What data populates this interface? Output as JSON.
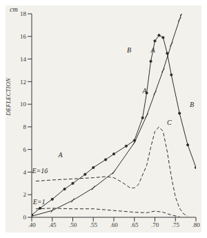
{
  "chart_data": {
    "type": "line",
    "ylabel": "DEFLECTION",
    "y_unit": "cm",
    "xlim": [
      0.4,
      0.8
    ],
    "xticks": [
      {
        "value": 0.4,
        "label": ".40"
      },
      {
        "value": 0.45,
        "label": ".45"
      },
      {
        "value": 0.5,
        "label": ".50"
      },
      {
        "value": 0.55,
        "label": ".55"
      },
      {
        "value": 0.6,
        "label": ".60"
      },
      {
        "value": 0.65,
        "label": ".65"
      },
      {
        "value": 0.7,
        "label": ".70"
      },
      {
        "value": 0.75,
        "label": ".75"
      },
      {
        "value": 0.8,
        "label": ".80"
      }
    ],
    "ylim": [
      0,
      18
    ],
    "yticks": [
      0,
      2,
      4,
      6,
      8,
      10,
      12,
      14,
      16,
      18
    ],
    "grid": false,
    "series": [
      {
        "name": "A",
        "color": "#2b2b2b",
        "marker": "tick",
        "line_style": "solid",
        "x": [
          0.4,
          0.45,
          0.5,
          0.55,
          0.6,
          0.65,
          0.68,
          0.7,
          0.72,
          0.74,
          0.76,
          0.765
        ],
        "values": [
          0.1,
          0.6,
          1.5,
          2.6,
          4.0,
          6.6,
          9.0,
          11.0,
          13.0,
          15.3,
          17.5,
          18.0
        ],
        "label_points": [
          [
            0.47,
            5.5
          ],
          [
            0.675,
            11.2
          ],
          [
            0.695,
            14.8
          ]
        ]
      },
      {
        "name": "B",
        "color": "#2b2b2b",
        "marker": "dot",
        "line_style": "solid",
        "x": [
          0.4,
          0.42,
          0.45,
          0.48,
          0.5,
          0.53,
          0.55,
          0.58,
          0.6,
          0.63,
          0.65,
          0.67,
          0.68,
          0.69,
          0.7,
          0.71,
          0.72,
          0.73,
          0.74,
          0.76,
          0.78,
          0.8
        ],
        "values": [
          0.2,
          0.8,
          1.6,
          2.5,
          3.0,
          3.8,
          4.4,
          5.1,
          5.6,
          6.3,
          6.8,
          8.8,
          11.0,
          13.8,
          15.6,
          16.1,
          15.9,
          14.5,
          12.6,
          9.2,
          6.4,
          4.4
        ],
        "label_points": [
          [
            0.637,
            14.8
          ],
          [
            0.79,
            10.0
          ]
        ]
      },
      {
        "name": "C",
        "color": "#2b2b2b",
        "marker": "none",
        "line_style": "dashed",
        "x": [
          0.41,
          0.45,
          0.5,
          0.55,
          0.58,
          0.6,
          0.62,
          0.64,
          0.65,
          0.66,
          0.68,
          0.69,
          0.7,
          0.71,
          0.72,
          0.73,
          0.74,
          0.75,
          0.76,
          0.77,
          0.78
        ],
        "values": [
          3.2,
          3.3,
          3.4,
          3.5,
          3.6,
          3.5,
          3.1,
          2.6,
          2.6,
          2.9,
          4.6,
          6.2,
          7.6,
          8.0,
          7.6,
          5.8,
          3.6,
          1.8,
          0.8,
          0.3,
          0.1
        ],
        "label_points": [
          [
            0.735,
            8.4
          ]
        ]
      },
      {
        "name": "E=1",
        "color": "#2b2b2b",
        "marker": "none",
        "line_style": "dashed",
        "x": [
          0.41,
          0.45,
          0.5,
          0.55,
          0.6,
          0.65,
          0.68,
          0.7,
          0.72,
          0.74,
          0.76
        ],
        "values": [
          0.75,
          0.8,
          0.75,
          0.75,
          0.6,
          0.45,
          0.4,
          0.55,
          0.45,
          0.2,
          0.05
        ],
        "label_points": [
          [
            0.418,
            1.4
          ]
        ]
      }
    ],
    "annotations": [
      {
        "text": "E=16",
        "x": 0.42,
        "y": 4.1
      }
    ]
  }
}
